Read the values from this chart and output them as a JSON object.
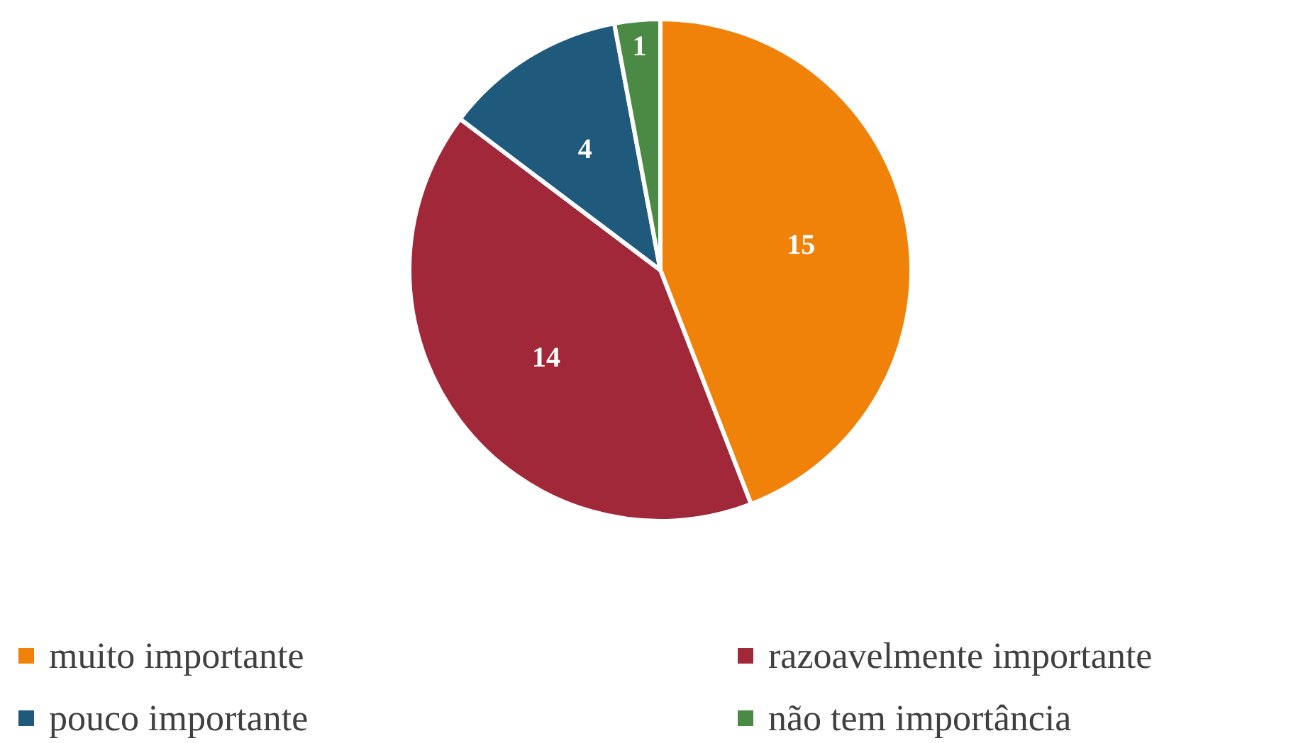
{
  "chart_data": {
    "type": "pie",
    "categories": [
      "muito importante",
      "razoavelmente importante",
      "pouco importante",
      "não tem importância"
    ],
    "values": [
      15,
      14,
      4,
      1
    ],
    "colors": [
      "#f0820a",
      "#a12838",
      "#1f5a7d",
      "#4a8a44"
    ],
    "data_labels": true,
    "legend": "bottom"
  }
}
